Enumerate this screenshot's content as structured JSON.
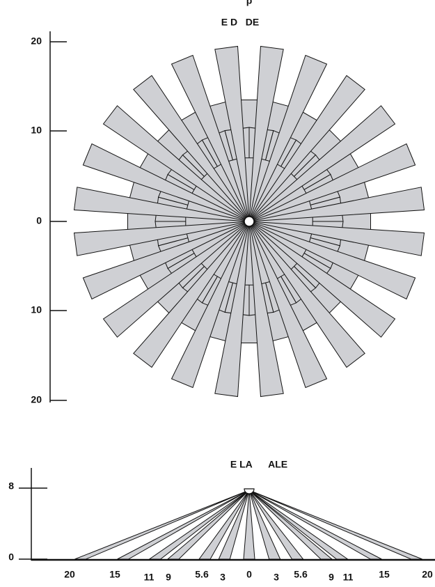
{
  "top_fragment": "p",
  "top_view": {
    "title": "E D   DE",
    "axis_labels": [
      "20",
      "10",
      "0",
      "10",
      "20"
    ]
  },
  "side_view": {
    "title": "E LA      ALE",
    "axis_labels": [
      "8",
      "0"
    ],
    "distance_labels": [
      "20",
      "15",
      "11",
      "9",
      "5.6",
      "3",
      "0",
      "3",
      "5.6",
      "9",
      "11",
      "15",
      "20"
    ]
  }
}
